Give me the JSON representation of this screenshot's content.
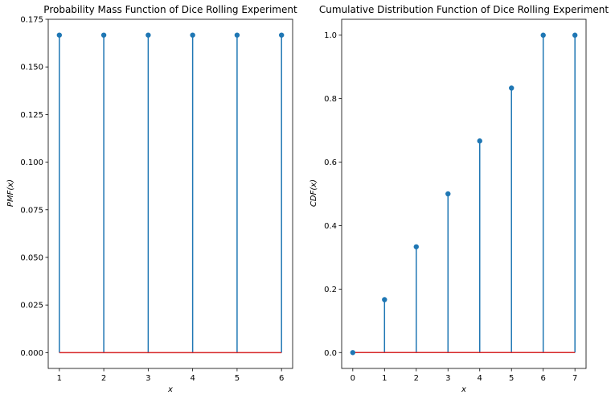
{
  "colors": {
    "stem": "#1f77b4",
    "baseline": "#d62728",
    "marker": "#1f77b4",
    "axes": "#000000",
    "background": "#ffffff"
  },
  "chart_data": [
    {
      "type": "stem",
      "title": "Probability Mass Function of Dice Rolling Experiment",
      "xlabel": "x",
      "ylabel": "PMF(x)",
      "x": [
        1,
        2,
        3,
        4,
        5,
        6
      ],
      "y": [
        0.1667,
        0.1667,
        0.1667,
        0.1667,
        0.1667,
        0.1667
      ],
      "xlim": [
        0.75,
        6.25
      ],
      "ylim": [
        -0.0083,
        0.175
      ],
      "xticks": [
        1,
        2,
        3,
        4,
        5,
        6
      ],
      "xtick_labels": [
        "1",
        "2",
        "3",
        "4",
        "5",
        "6"
      ],
      "yticks": [
        0,
        0.025,
        0.05,
        0.075,
        0.1,
        0.125,
        0.15,
        0.175
      ],
      "ytick_labels": [
        "0.000",
        "0.025",
        "0.050",
        "0.075",
        "0.100",
        "0.125",
        "0.150",
        "0.175"
      ],
      "baseline": 0,
      "grid": false
    },
    {
      "type": "stem",
      "title": "Cumulative Distribution Function of Dice Rolling Experiment",
      "xlabel": "x",
      "ylabel": "CDF(x)",
      "x": [
        0,
        1,
        2,
        3,
        4,
        5,
        6,
        7
      ],
      "y": [
        0,
        0.1667,
        0.3333,
        0.5,
        0.6667,
        0.8333,
        1.0,
        1.0
      ],
      "xlim": [
        -0.35,
        7.35
      ],
      "ylim": [
        -0.05,
        1.05
      ],
      "xticks": [
        0,
        1,
        2,
        3,
        4,
        5,
        6,
        7
      ],
      "xtick_labels": [
        "0",
        "1",
        "2",
        "3",
        "4",
        "5",
        "6",
        "7"
      ],
      "yticks": [
        0,
        0.2,
        0.4,
        0.6,
        0.8,
        1.0
      ],
      "ytick_labels": [
        "0.0",
        "0.2",
        "0.4",
        "0.6",
        "0.8",
        "1.0"
      ],
      "baseline": 0,
      "grid": false
    }
  ]
}
